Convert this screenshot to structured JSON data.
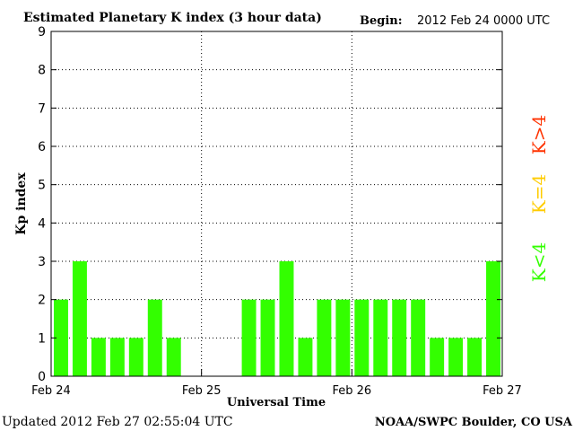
{
  "chart_data": {
    "type": "bar",
    "title": "Estimated Planetary K index (3 hour data)",
    "begin_label": "Begin:",
    "begin_value": "2012 Feb 24 0000 UTC",
    "xlabel": "Universal Time",
    "ylabel": "Kp index",
    "ylim": [
      0,
      9
    ],
    "yticks": [
      "0",
      "1",
      "2",
      "3",
      "4",
      "5",
      "6",
      "7",
      "8",
      "9"
    ],
    "xticks": [
      "Feb 24",
      "Feb 25",
      "Feb 26",
      "Feb 27"
    ],
    "grid": "dotted vertical and horizontal",
    "values": [
      2,
      3,
      1,
      1,
      1,
      2,
      1,
      0,
      0,
      0,
      2,
      2,
      3,
      1,
      2,
      2,
      2,
      2,
      2,
      2,
      1,
      1,
      1,
      3
    ],
    "bar_colors_by_level": {
      "below_4": "#33ff00",
      "equal_4": "#ffcc00",
      "above_4": "#ff3300"
    },
    "legend": {
      "k_gt_4": "K>4",
      "k_eq_4": "K=4",
      "k_lt_4": "K<4"
    }
  },
  "footer": {
    "updated": "Updated 2012 Feb 27 02:55:04 UTC",
    "credit": "NOAA/SWPC Boulder, CO USA"
  }
}
